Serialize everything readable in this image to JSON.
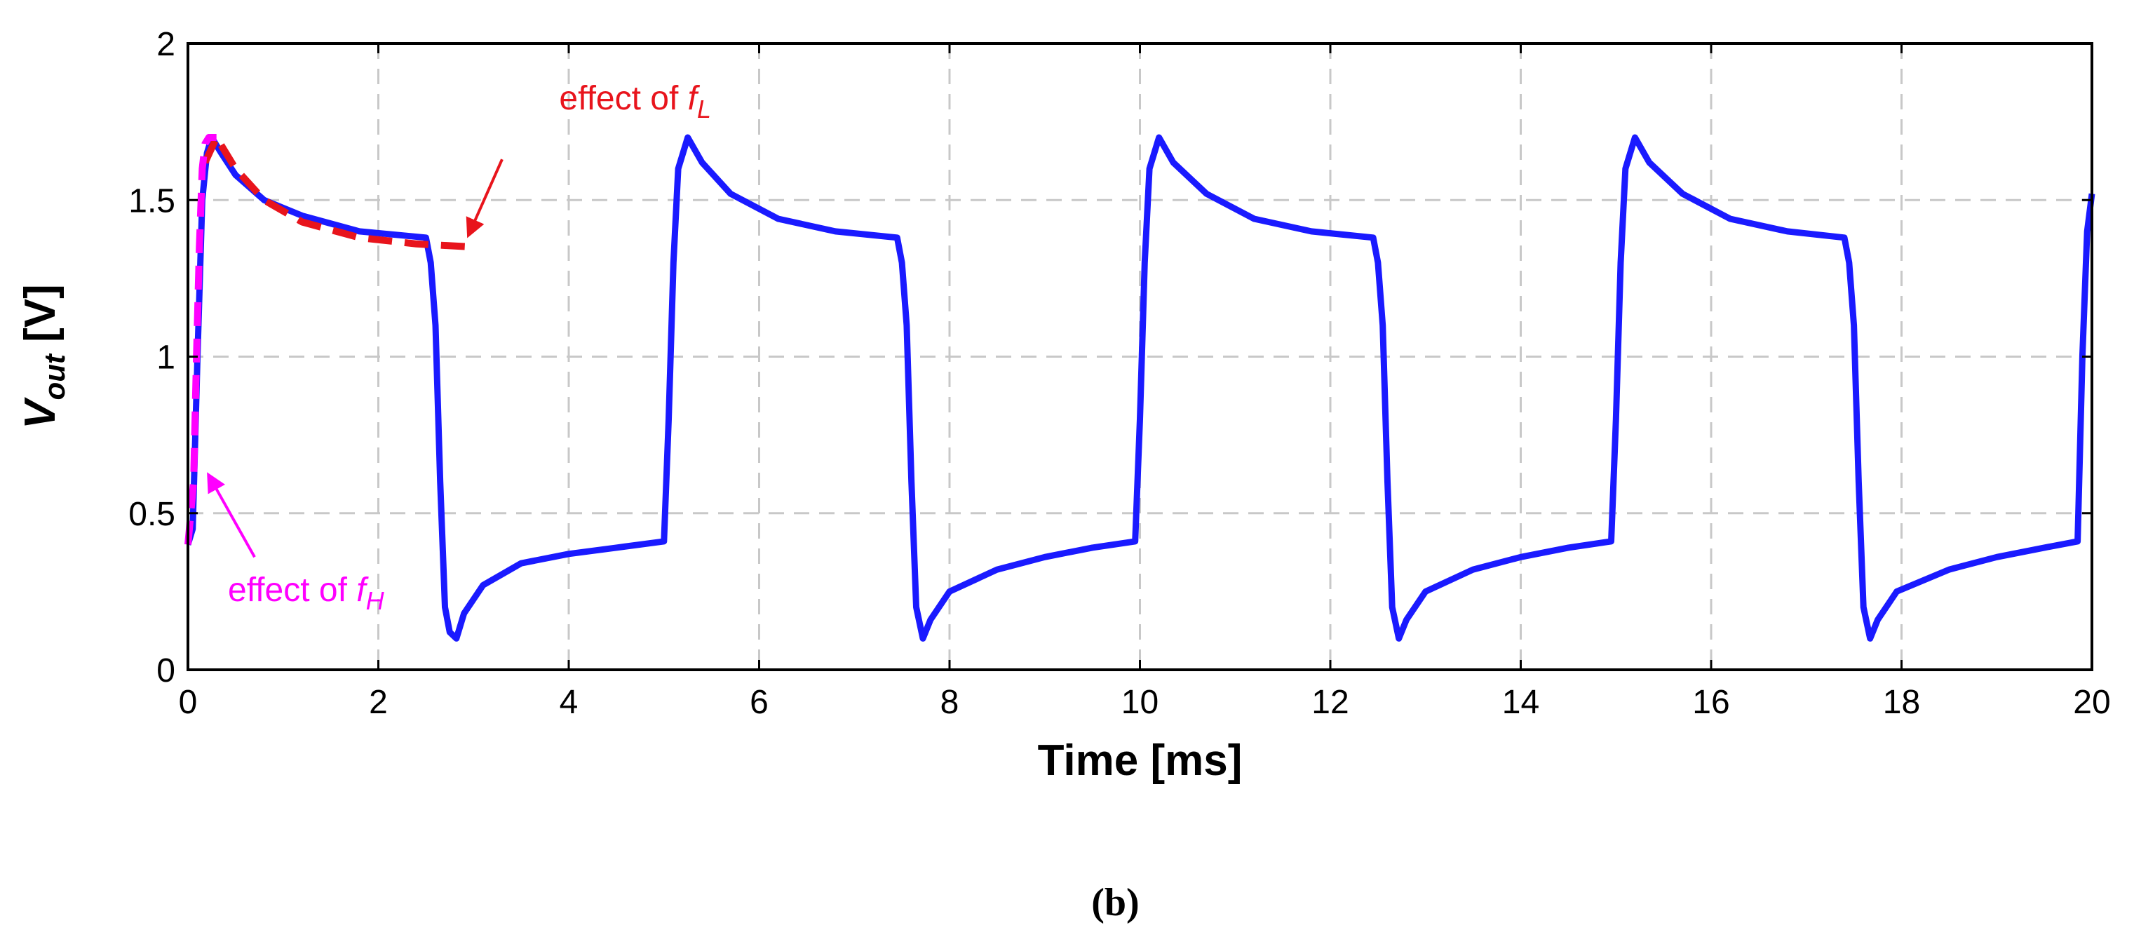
{
  "chart_data": {
    "type": "line",
    "xlabel": "Time [ms]",
    "ylabel_main": "V",
    "ylabel_sub": "out",
    "ylabel_unit": " [V]",
    "xlim": [
      0,
      20
    ],
    "ylim": [
      0,
      2
    ],
    "xticks": [
      0,
      2,
      4,
      6,
      8,
      10,
      12,
      14,
      16,
      18,
      20
    ],
    "yticks": [
      0,
      0.5,
      1,
      1.5,
      2
    ],
    "ytick_labels": [
      "0",
      "0.5",
      "1",
      "1.5",
      "2"
    ],
    "grid": true,
    "caption": "(b)",
    "colors": {
      "main": "#1a1aff",
      "fL": "#e8141c",
      "fH": "#ff00ff"
    },
    "series": [
      {
        "key": "main",
        "x": [
          0,
          0.05,
          0.1,
          0.15,
          0.2,
          0.25,
          0.35,
          0.5,
          0.8,
          1.2,
          1.8,
          2.5,
          2.55,
          2.6,
          2.65,
          2.7,
          2.75,
          2.82,
          2.9,
          3.1,
          3.5,
          4.0,
          4.5,
          5.0,
          5.05,
          5.1,
          5.15,
          5.25,
          5.4,
          5.7,
          6.2,
          6.8,
          7.45,
          7.5,
          7.55,
          7.6,
          7.65,
          7.72,
          7.8,
          8.0,
          8.5,
          9.0,
          9.5,
          9.95,
          10.0,
          10.05,
          10.1,
          10.2,
          10.35,
          10.7,
          11.2,
          11.8,
          12.45,
          12.5,
          12.55,
          12.6,
          12.65,
          12.72,
          12.8,
          13.0,
          13.5,
          14.0,
          14.5,
          14.95,
          15.0,
          15.05,
          15.1,
          15.2,
          15.35,
          15.7,
          16.2,
          16.8,
          17.4,
          17.45,
          17.5,
          17.55,
          17.6,
          17.67,
          17.75,
          17.95,
          18.5,
          19.0,
          19.5,
          19.85,
          19.9,
          19.95,
          20.0
        ],
        "y": [
          0.4,
          0.45,
          1.0,
          1.5,
          1.65,
          1.7,
          1.65,
          1.58,
          1.5,
          1.45,
          1.4,
          1.38,
          1.3,
          1.1,
          0.6,
          0.2,
          0.12,
          0.1,
          0.18,
          0.27,
          0.34,
          0.37,
          0.39,
          0.41,
          0.8,
          1.3,
          1.6,
          1.7,
          1.62,
          1.52,
          1.44,
          1.4,
          1.38,
          1.3,
          1.1,
          0.6,
          0.2,
          0.1,
          0.16,
          0.25,
          0.32,
          0.36,
          0.39,
          0.41,
          0.8,
          1.3,
          1.6,
          1.7,
          1.62,
          1.52,
          1.44,
          1.4,
          1.38,
          1.3,
          1.1,
          0.6,
          0.2,
          0.1,
          0.16,
          0.25,
          0.32,
          0.36,
          0.39,
          0.41,
          0.8,
          1.3,
          1.6,
          1.7,
          1.62,
          1.52,
          1.44,
          1.4,
          1.38,
          1.3,
          1.1,
          0.6,
          0.2,
          0.1,
          0.16,
          0.25,
          0.32,
          0.36,
          0.39,
          0.41,
          1.0,
          1.4,
          1.52
        ]
      },
      {
        "key": "fL",
        "x": [
          0.18,
          0.3,
          0.5,
          0.8,
          1.2,
          1.8,
          2.4,
          3.0
        ],
        "y": [
          1.62,
          1.7,
          1.6,
          1.5,
          1.43,
          1.38,
          1.36,
          1.35
        ]
      },
      {
        "key": "fH",
        "x": [
          0.0,
          0.06,
          0.09,
          0.12,
          0.15,
          0.18,
          0.22,
          0.3
        ],
        "y": [
          0.4,
          0.6,
          1.0,
          1.35,
          1.6,
          1.68,
          1.7,
          1.7
        ]
      }
    ],
    "annotations": [
      {
        "key": "fL",
        "text": "effect of ",
        "italic_main": "f",
        "italic_sub": "L",
        "text_x": 3.9,
        "text_y": 1.79,
        "arrow_from": [
          3.3,
          1.63
        ],
        "arrow_to": [
          2.95,
          1.39
        ]
      },
      {
        "key": "fH",
        "text": "effect of ",
        "italic_main": "f",
        "italic_sub": "H",
        "text_x": 0.42,
        "text_y": 0.22,
        "arrow_from": [
          0.7,
          0.36
        ],
        "arrow_to": [
          0.22,
          0.62
        ]
      }
    ]
  }
}
